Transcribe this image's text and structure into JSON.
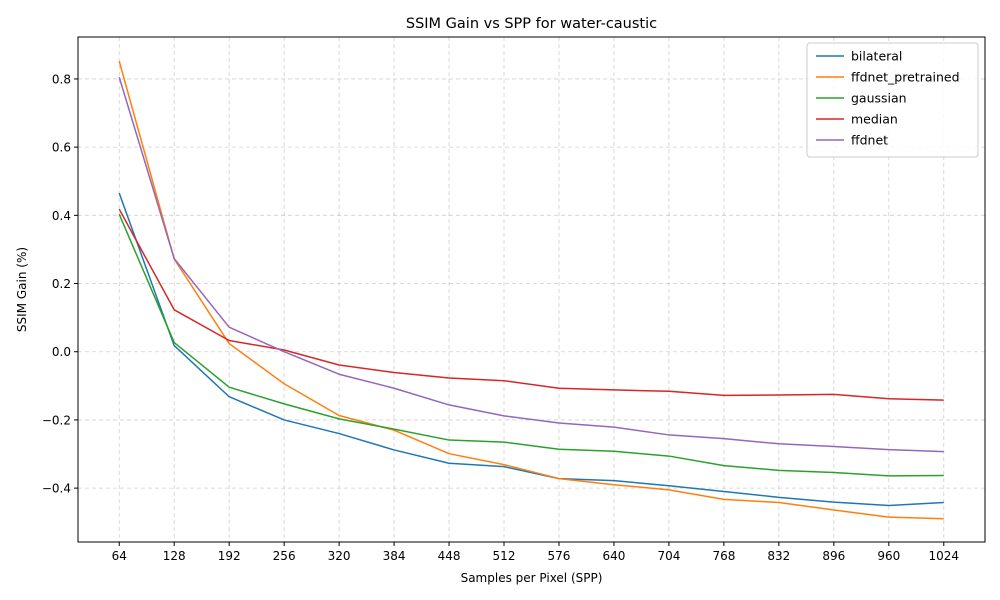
{
  "chart_data": {
    "type": "line",
    "title": "SSIM Gain vs SPP for water-caustic",
    "xlabel": "Samples per Pixel (SPP)",
    "ylabel": "SSIM Gain (%)",
    "x": [
      64,
      128,
      192,
      256,
      320,
      384,
      448,
      512,
      576,
      640,
      704,
      768,
      832,
      896,
      960,
      1024
    ],
    "x_tick_labels": [
      "64",
      "128",
      "192",
      "256",
      "320",
      "384",
      "448",
      "512",
      "576",
      "640",
      "704",
      "768",
      "832",
      "896",
      "960",
      "1024"
    ],
    "y_ticks": [
      -0.4,
      -0.2,
      0.0,
      0.2,
      0.4,
      0.6,
      0.8
    ],
    "y_tick_labels": [
      "−0.4",
      "−0.2",
      "0.0",
      "0.2",
      "0.4",
      "0.6",
      "0.8"
    ],
    "xlim": [
      16,
      1072
    ],
    "ylim": [
      -0.558,
      0.923
    ],
    "grid": true,
    "legend_position": "top-right",
    "series": [
      {
        "name": "bilateral",
        "color": "#1f77b4",
        "values": [
          0.465,
          0.018,
          -0.132,
          -0.2,
          -0.24,
          -0.288,
          -0.327,
          -0.337,
          -0.372,
          -0.378,
          -0.393,
          -0.41,
          -0.427,
          -0.441,
          -0.451,
          -0.442
        ]
      },
      {
        "name": "ffdnet_pretrained",
        "color": "#ff7f0e",
        "values": [
          0.852,
          0.272,
          0.024,
          -0.094,
          -0.187,
          -0.23,
          -0.299,
          -0.331,
          -0.372,
          -0.39,
          -0.405,
          -0.433,
          -0.442,
          -0.464,
          -0.485,
          -0.49
        ]
      },
      {
        "name": "gaussian",
        "color": "#2ca02c",
        "values": [
          0.403,
          0.027,
          -0.104,
          -0.153,
          -0.197,
          -0.227,
          -0.259,
          -0.265,
          -0.286,
          -0.292,
          -0.306,
          -0.334,
          -0.348,
          -0.354,
          -0.364,
          -0.363
        ]
      },
      {
        "name": "median",
        "color": "#d62728",
        "values": [
          0.418,
          0.123,
          0.033,
          0.005,
          -0.039,
          -0.061,
          -0.077,
          -0.085,
          -0.107,
          -0.112,
          -0.116,
          -0.128,
          -0.127,
          -0.125,
          -0.138,
          -0.142
        ]
      },
      {
        "name": "ffdnet",
        "color": "#9467bd",
        "values": [
          0.805,
          0.273,
          0.072,
          0.0,
          -0.066,
          -0.107,
          -0.156,
          -0.188,
          -0.209,
          -0.221,
          -0.244,
          -0.255,
          -0.27,
          -0.278,
          -0.287,
          -0.293
        ]
      }
    ]
  }
}
